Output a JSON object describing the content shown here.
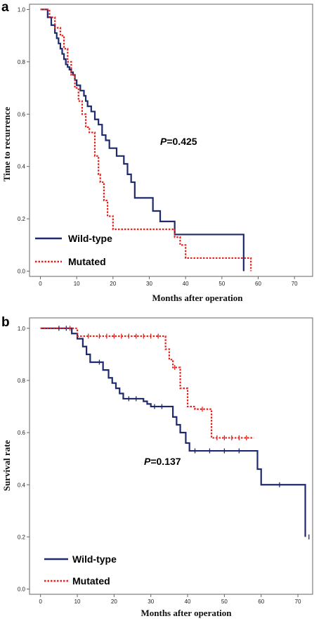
{
  "chart_data": [
    {
      "panel_label": "a",
      "type": "line",
      "subtype": "kaplan-meier-step",
      "title": "",
      "xlabel": "Months after operation",
      "ylabel": "Time to recurrence",
      "xlim": [
        -3,
        75
      ],
      "ylim": [
        -0.02,
        1.02
      ],
      "x_ticks": [
        0,
        10,
        20,
        30,
        40,
        50,
        60,
        70
      ],
      "y_ticks": [
        0.0,
        0.2,
        0.4,
        0.6,
        0.8,
        1.0
      ],
      "x_tick_labels": [
        "0",
        "10",
        "20",
        "30",
        "40",
        "50",
        "60",
        "70"
      ],
      "y_tick_labels": [
        "0.0",
        "0.2",
        "0.4",
        "0.6",
        "0.8",
        "1.0"
      ],
      "annotation": {
        "p_label": "P",
        "p_value": "=0.425"
      },
      "legend": {
        "placement": "bottom-left",
        "entries": [
          "Wild-type",
          "Mutated"
        ]
      },
      "series": [
        {
          "name": "Wild-type",
          "color": "#1f2a6e",
          "line_style": "solid",
          "x": [
            0,
            2,
            3,
            4,
            4.5,
            5,
            5.5,
            6,
            6.5,
            7,
            7.5,
            8,
            8.5,
            9,
            9.5,
            10,
            11,
            12,
            12.5,
            13,
            14,
            15,
            16,
            17,
            18,
            19,
            21,
            23,
            24,
            25,
            26,
            31,
            33,
            37,
            56
          ],
          "y": [
            1.0,
            0.97,
            0.94,
            0.91,
            0.89,
            0.87,
            0.85,
            0.83,
            0.81,
            0.79,
            0.78,
            0.77,
            0.76,
            0.75,
            0.73,
            0.71,
            0.69,
            0.67,
            0.65,
            0.63,
            0.61,
            0.58,
            0.56,
            0.52,
            0.5,
            0.47,
            0.44,
            0.41,
            0.37,
            0.34,
            0.28,
            0.23,
            0.19,
            0.14,
            0.0
          ],
          "censored": []
        },
        {
          "name": "Mutated",
          "color": "#e8201b",
          "line_style": "dotted",
          "x": [
            0,
            2.5,
            4,
            5.5,
            6.5,
            7.5,
            8.5,
            9.5,
            10.5,
            11.5,
            12.5,
            13.5,
            15,
            16,
            16.5,
            17.5,
            18.5,
            20,
            37,
            38.5,
            40,
            58
          ],
          "y": [
            1.0,
            0.97,
            0.93,
            0.9,
            0.85,
            0.8,
            0.75,
            0.7,
            0.65,
            0.6,
            0.55,
            0.53,
            0.44,
            0.37,
            0.34,
            0.27,
            0.21,
            0.16,
            0.13,
            0.1,
            0.05,
            0.0
          ],
          "censored": []
        }
      ]
    },
    {
      "panel_label": "b",
      "type": "line",
      "subtype": "kaplan-meier-step",
      "title": "",
      "xlabel": "Months after operation",
      "ylabel": "Survival rate",
      "xlim": [
        -3,
        74
      ],
      "ylim": [
        -0.02,
        1.04
      ],
      "x_ticks": [
        0,
        10,
        20,
        30,
        40,
        50,
        60,
        70
      ],
      "y_ticks": [
        0.0,
        0.2,
        0.4,
        0.6,
        0.8,
        1.0
      ],
      "x_tick_labels": [
        "0",
        "10",
        "20",
        "30",
        "40",
        "50",
        "60",
        "70"
      ],
      "y_tick_labels": [
        "0.0",
        "0.2",
        "0.4",
        "0.6",
        "0.8",
        "1.0"
      ],
      "annotation": {
        "p_label": "P",
        "p_value": "=0.137"
      },
      "legend": {
        "placement": "bottom-left",
        "entries": [
          "Wild-type",
          "Mutated"
        ]
      },
      "series": [
        {
          "name": "Wild-type",
          "color": "#1f2a6e",
          "line_style": "solid",
          "x": [
            0,
            8.5,
            10,
            11.5,
            12.5,
            13.5,
            17,
            18.5,
            19.5,
            20.5,
            21.5,
            22.5,
            23.5,
            28,
            29,
            30,
            35,
            36,
            37,
            38,
            39.5,
            40.5,
            58,
            59,
            60,
            72
          ],
          "y": [
            1.0,
            0.98,
            0.96,
            0.93,
            0.9,
            0.87,
            0.84,
            0.81,
            0.79,
            0.77,
            0.75,
            0.73,
            0.73,
            0.72,
            0.71,
            0.7,
            0.7,
            0.66,
            0.63,
            0.6,
            0.56,
            0.53,
            0.53,
            0.46,
            0.4,
            0.2
          ],
          "censored": [
            [
              5,
              1.0
            ],
            [
              7,
              1.0
            ],
            [
              16,
              0.87
            ],
            [
              24,
              0.73
            ],
            [
              26,
              0.73
            ],
            [
              31,
              0.7
            ],
            [
              33,
              0.7
            ],
            [
              42,
              0.53
            ],
            [
              46,
              0.53
            ],
            [
              50,
              0.53
            ],
            [
              54,
              0.53
            ],
            [
              65,
              0.4
            ],
            [
              73,
              0.2
            ]
          ]
        },
        {
          "name": "Mutated",
          "color": "#e8201b",
          "line_style": "dotted",
          "x": [
            0,
            10,
            34,
            35,
            36,
            38,
            40,
            42,
            46.5,
            58
          ],
          "y": [
            1.0,
            0.97,
            0.92,
            0.88,
            0.85,
            0.77,
            0.7,
            0.69,
            0.58,
            0.58
          ],
          "censored": [
            [
              8,
              1.0
            ],
            [
              13,
              0.97
            ],
            [
              16,
              0.97
            ],
            [
              18,
              0.97
            ],
            [
              20,
              0.97
            ],
            [
              22,
              0.97
            ],
            [
              24,
              0.97
            ],
            [
              26,
              0.97
            ],
            [
              28,
              0.97
            ],
            [
              30,
              0.97
            ],
            [
              32,
              0.97
            ],
            [
              36.5,
              0.85
            ],
            [
              44,
              0.69
            ],
            [
              48,
              0.58
            ],
            [
              50,
              0.58
            ],
            [
              52,
              0.58
            ],
            [
              54,
              0.58
            ],
            [
              56,
              0.58
            ]
          ]
        }
      ]
    }
  ]
}
